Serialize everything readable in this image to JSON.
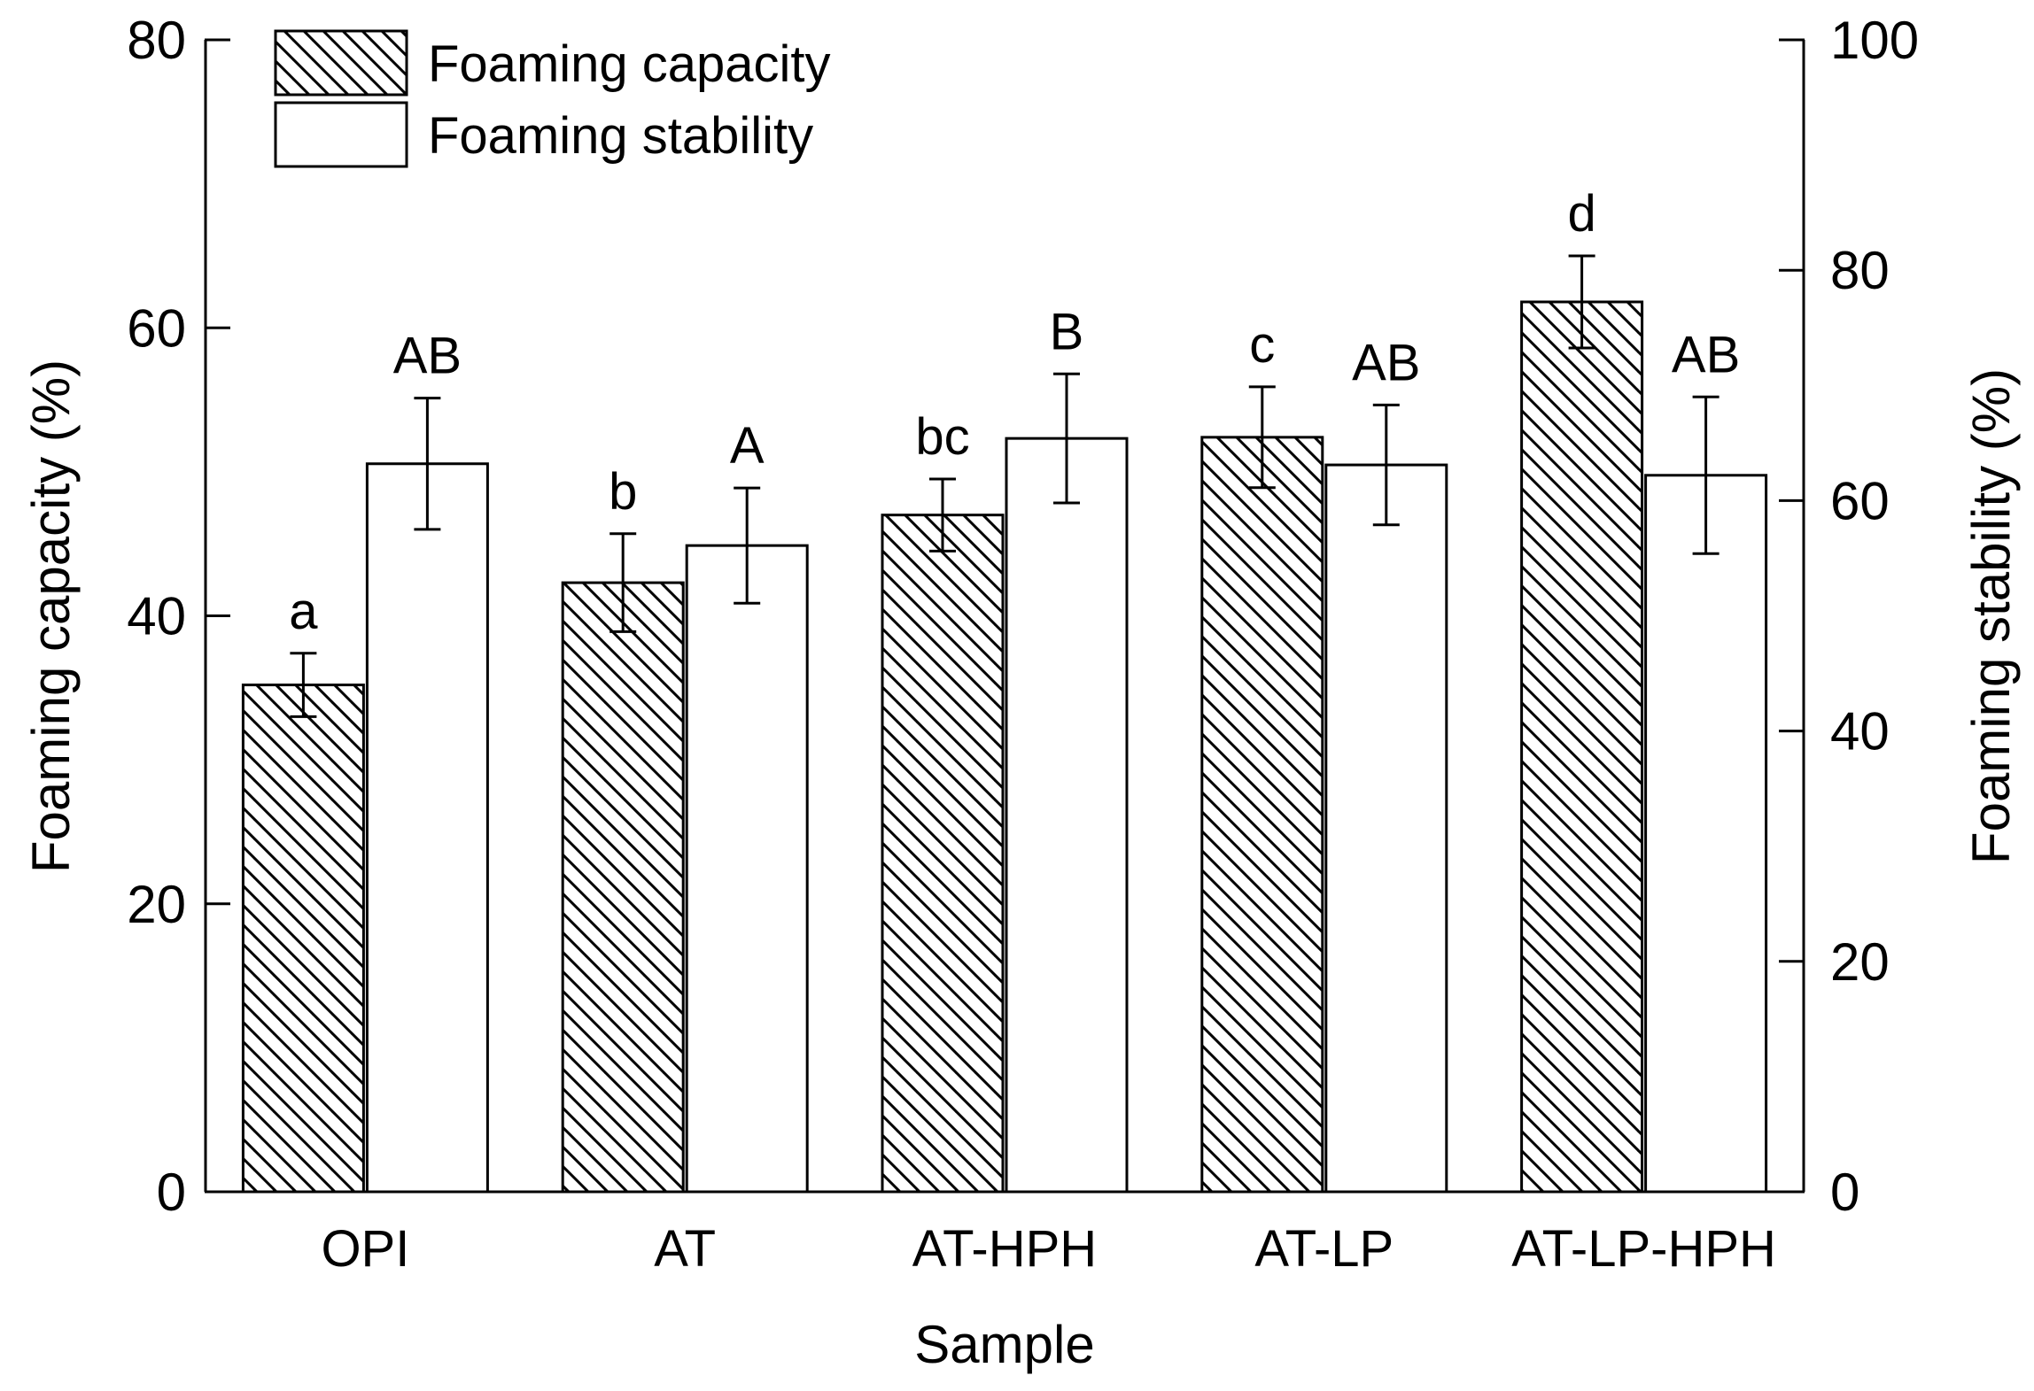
{
  "chart_data": {
    "type": "bar",
    "title": "",
    "xlabel": "Sample",
    "ylabel": "Foaming capacity (%)",
    "y2label": "Foaming stability (%)",
    "categories": [
      "OPI",
      "AT",
      "AT-HPH",
      "AT-LP",
      "AT-LP-HPH"
    ],
    "ylim": [
      0,
      80
    ],
    "y2lim": [
      0,
      100
    ],
    "yticks": [
      0,
      20,
      40,
      60,
      80
    ],
    "y2ticks": [
      0,
      20,
      40,
      60,
      80,
      100
    ],
    "legend_position": "top-left",
    "grid": false,
    "series": [
      {
        "name": "Foaming capacity",
        "axis": "left",
        "pattern": "hatched",
        "values": [
          35.2,
          42.3,
          47.0,
          52.4,
          61.8
        ],
        "errors": [
          2.2,
          3.4,
          2.5,
          3.5,
          3.2
        ],
        "letters": [
          "a",
          "b",
          "bc",
          "c",
          "d"
        ]
      },
      {
        "name": "Foaming stability",
        "axis": "right",
        "pattern": "open",
        "values": [
          63.2,
          56.1,
          65.4,
          63.1,
          62.2
        ],
        "errors": [
          5.7,
          5.0,
          5.6,
          5.2,
          6.8
        ],
        "letters": [
          "AB",
          "A",
          "B",
          "AB",
          "AB"
        ]
      }
    ]
  }
}
